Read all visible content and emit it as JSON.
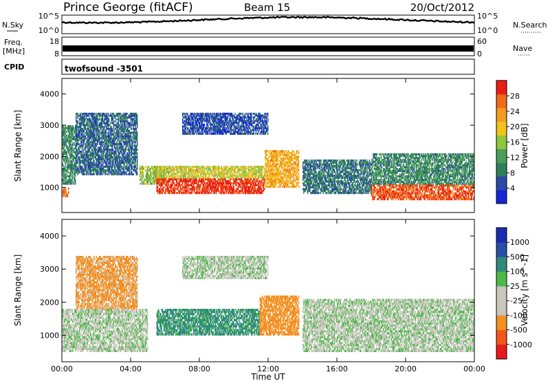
{
  "header": {
    "radar": "Prince George (fitACF)",
    "beam": "Beam 15",
    "date": "20/Oct/2012"
  },
  "noise_panel": {
    "left_label": "N.Sky",
    "right_label": "N.Search",
    "ticks": [
      "10^5",
      "10^0"
    ]
  },
  "freq_panel": {
    "left_label_1": "Freq.",
    "left_label_2": "[MHz]",
    "left_ticks": [
      "18",
      "8"
    ],
    "right_label": "Nave",
    "right_ticks": [
      "60",
      "0"
    ]
  },
  "cpid_panel": {
    "label": "CPID",
    "program": "twofsound -3501"
  },
  "colors": {
    "power": [
      "#1426d8",
      "#2a49a8",
      "#2f7f5a",
      "#4a9e57",
      "#8dc63f",
      "#f2c21b",
      "#f39b1e",
      "#f06a18",
      "#e82014"
    ],
    "velocity": [
      "#e81a1a",
      "#f0581a",
      "#f39022",
      "#c8c6bd",
      "#c8c6bd",
      "#4cb848",
      "#2e8b78",
      "#2a4fa6",
      "#1a2db0"
    ]
  },
  "chart_data": [
    {
      "type": "heatmap",
      "quantity": "Power",
      "ylabel": "Slant Range [km]",
      "yticks": [
        1000,
        2000,
        3000,
        4000
      ],
      "ylim": [
        200,
        4500
      ],
      "xlim": [
        0,
        24
      ],
      "colorbar_label": "Power [dB]",
      "colorbar_ticks": [
        "4",
        "8",
        "12",
        "16",
        "20",
        "24",
        "28"
      ],
      "colorbar_range": [
        0,
        32
      ],
      "features": [
        {
          "t_start": 0.0,
          "t_end": 0.4,
          "range_low": 700,
          "range_high": 1000,
          "dB": 26
        },
        {
          "t_start": 0.0,
          "t_end": 0.8,
          "range_low": 1100,
          "range_high": 3000,
          "dB": 10
        },
        {
          "t_start": 0.8,
          "t_end": 4.4,
          "range_low": 1400,
          "range_high": 3400,
          "dB": 7
        },
        {
          "t_start": 4.5,
          "t_end": 6.0,
          "range_low": 1100,
          "range_high": 1700,
          "dB": 16
        },
        {
          "t_start": 5.5,
          "t_end": 11.8,
          "range_low": 800,
          "range_high": 1300,
          "dB": 30
        },
        {
          "t_start": 5.5,
          "t_end": 11.8,
          "range_low": 1300,
          "range_high": 1700,
          "dB": 18
        },
        {
          "t_start": 11.8,
          "t_end": 13.8,
          "range_low": 1000,
          "range_high": 2200,
          "dB": 22
        },
        {
          "t_start": 14.0,
          "t_end": 18.0,
          "range_low": 800,
          "range_high": 1900,
          "dB": 8
        },
        {
          "t_start": 18.0,
          "t_end": 24.0,
          "range_low": 600,
          "range_high": 1100,
          "dB": 28
        },
        {
          "t_start": 18.0,
          "t_end": 24.0,
          "range_low": 1100,
          "range_high": 2100,
          "dB": 10
        },
        {
          "t_start": 7.0,
          "t_end": 12.0,
          "range_low": 2700,
          "range_high": 3400,
          "dB": 5
        }
      ]
    },
    {
      "type": "heatmap",
      "quantity": "Velocity",
      "ylabel": "Slant Range [km]",
      "xlabel": "Time UT",
      "yticks": [
        1000,
        2000,
        3000,
        4000
      ],
      "ylim": [
        200,
        4500
      ],
      "xlim": [
        0,
        24
      ],
      "xticks": [
        "00:00",
        "04:00",
        "08:00",
        "12:00",
        "16:00",
        "20:00",
        "00:00"
      ],
      "colorbar_label": "Velocity [m s^-1]",
      "colorbar_ticks": [
        "-1000",
        "-500",
        "-100",
        "-25",
        "25",
        "100",
        "500",
        "1000"
      ],
      "features": [
        {
          "t_start": 0.0,
          "t_end": 5.0,
          "range_low": 500,
          "range_high": 1800,
          "velocity": 0
        },
        {
          "t_start": 0.8,
          "t_end": 4.4,
          "range_low": 1800,
          "range_high": 3400,
          "velocity": -150
        },
        {
          "t_start": 5.5,
          "t_end": 11.5,
          "range_low": 1000,
          "range_high": 1800,
          "velocity": 150
        },
        {
          "t_start": 11.5,
          "t_end": 13.8,
          "range_low": 1000,
          "range_high": 2200,
          "velocity": -200
        },
        {
          "t_start": 14.0,
          "t_end": 24.0,
          "range_low": 500,
          "range_high": 2100,
          "velocity": 0
        },
        {
          "t_start": 7.0,
          "t_end": 12.0,
          "range_low": 2700,
          "range_high": 3400,
          "velocity": 0
        }
      ]
    }
  ]
}
